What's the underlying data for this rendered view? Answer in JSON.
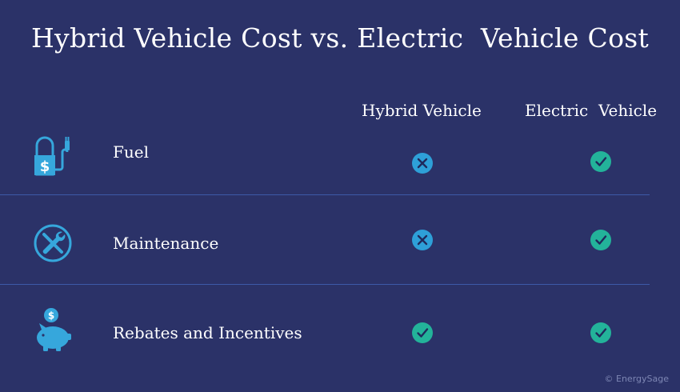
{
  "title": "Hybrid Vehicle Cost vs. Electric  Vehicle Cost",
  "columns": [
    "Hybrid Vehicle",
    "Electric  Vehicle"
  ],
  "rows": [
    {
      "label": "Fuel",
      "icon": "fuel-pump-icon",
      "hybrid": "x",
      "electric": "check"
    },
    {
      "label": "Maintenance",
      "icon": "maintenance-tools-icon",
      "hybrid": "x",
      "electric": "check"
    },
    {
      "label": "Rebates and Incentives",
      "icon": "piggy-bank-icon",
      "hybrid": "check",
      "electric": "check"
    }
  ],
  "credit": "© EnergySage",
  "colors": {
    "background": "#2b3268",
    "icon": "#36a7dc",
    "x_mark": "#2ea0d8",
    "check_mark": "#23b39a",
    "divider": "#3d5aa8"
  }
}
